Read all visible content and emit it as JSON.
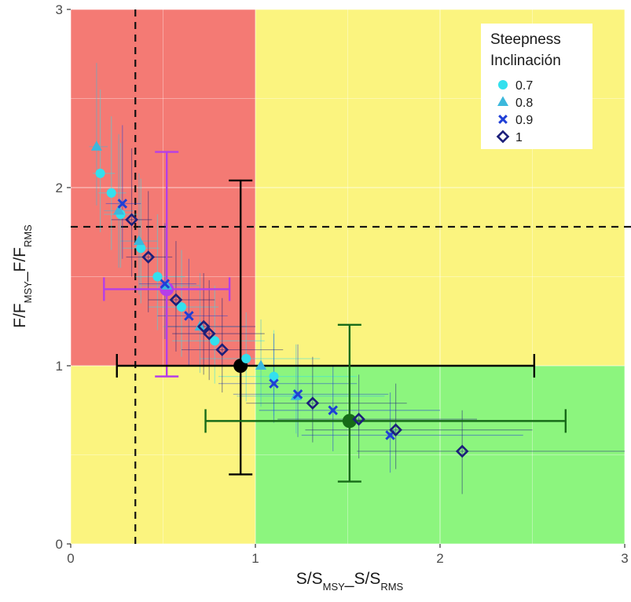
{
  "chart_data": {
    "type": "scatter",
    "xlabel": {
      "parts": [
        "S/S",
        "MSY",
        "_S/S",
        "RMS"
      ]
    },
    "ylabel": {
      "parts": [
        "F/F",
        "MSY",
        "_F/F",
        "RMS"
      ]
    },
    "xlim": [
      0,
      3
    ],
    "ylim": [
      0,
      3
    ],
    "x_ticks": [
      0,
      1,
      2,
      3
    ],
    "y_ticks": [
      0,
      1,
      2,
      3
    ],
    "grid": true,
    "zones": [
      {
        "name": "overfished-overfishing",
        "x": [
          0,
          1
        ],
        "y": [
          1,
          3
        ],
        "color": "#f47a74"
      },
      {
        "name": "top-right",
        "x": [
          1,
          3
        ],
        "y": [
          1,
          3
        ],
        "color": "#fbf47f"
      },
      {
        "name": "bottom-left",
        "x": [
          0,
          1
        ],
        "y": [
          0,
          1
        ],
        "color": "#fbf47f"
      },
      {
        "name": "healthy",
        "x": [
          1,
          3
        ],
        "y": [
          0,
          1
        ],
        "color": "#8cf57e"
      }
    ],
    "reference_lines": {
      "vertical_x": 0.35,
      "horizontal_y": 1.78,
      "style": "dashed"
    },
    "legend": {
      "title_lines": [
        "Steepness",
        "Inclinación"
      ],
      "position": "top-right",
      "entries": [
        {
          "label": "0.7",
          "shape": "circle",
          "color": "#33e0ee"
        },
        {
          "label": "0.8",
          "shape": "triangle",
          "color": "#3cb8dc"
        },
        {
          "label": "0.9",
          "shape": "x",
          "color": "#1f3fd6"
        },
        {
          "label": "1",
          "shape": "diamond",
          "color": "#1c1f7a"
        }
      ]
    },
    "series": [
      {
        "name": "0.7",
        "points": [
          {
            "x": 0.16,
            "y": 2.08,
            "xerr": [
              0.12,
              0.24
            ],
            "yerr": [
              1.75,
              2.55
            ]
          },
          {
            "x": 0.22,
            "y": 1.97,
            "xerr": [
              0.15,
              0.3
            ],
            "yerr": [
              1.65,
              2.4
            ]
          },
          {
            "x": 0.27,
            "y": 1.85,
            "xerr": [
              0.18,
              0.36
            ],
            "yerr": [
              1.55,
              2.25
            ]
          },
          {
            "x": 0.38,
            "y": 1.66,
            "xerr": [
              0.28,
              0.48
            ],
            "yerr": [
              1.35,
              2.05
            ]
          },
          {
            "x": 0.47,
            "y": 1.5,
            "xerr": [
              0.35,
              0.62
            ],
            "yerr": [
              1.2,
              1.85
            ]
          },
          {
            "x": 0.6,
            "y": 1.33,
            "xerr": [
              0.42,
              0.8
            ],
            "yerr": [
              1.05,
              1.65
            ]
          },
          {
            "x": 0.78,
            "y": 1.14,
            "xerr": [
              0.55,
              1.05
            ],
            "yerr": [
              0.9,
              1.45
            ]
          },
          {
            "x": 0.95,
            "y": 1.04,
            "xerr": [
              0.7,
              1.35
            ],
            "yerr": [
              0.8,
              1.3
            ]
          },
          {
            "x": 1.1,
            "y": 0.94,
            "xerr": [
              0.8,
              1.55
            ],
            "yerr": [
              0.72,
              1.2
            ]
          }
        ]
      },
      {
        "name": "0.8",
        "points": [
          {
            "x": 0.14,
            "y": 2.23,
            "xerr": [
              0.1,
              0.2
            ],
            "yerr": [
              1.9,
              2.7
            ]
          },
          {
            "x": 0.26,
            "y": 1.87,
            "xerr": [
              0.18,
              0.34
            ],
            "yerr": [
              1.55,
              2.3
            ]
          },
          {
            "x": 0.37,
            "y": 1.7,
            "xerr": [
              0.27,
              0.47
            ],
            "yerr": [
              1.4,
              2.08
            ]
          },
          {
            "x": 0.52,
            "y": 1.45,
            "xerr": [
              0.38,
              0.7
            ],
            "yerr": [
              1.15,
              1.8
            ]
          },
          {
            "x": 0.7,
            "y": 1.22,
            "xerr": [
              0.5,
              0.95
            ],
            "yerr": [
              0.96,
              1.52
            ]
          },
          {
            "x": 1.03,
            "y": 1.0,
            "xerr": [
              0.75,
              1.45
            ],
            "yerr": [
              0.77,
              1.26
            ]
          },
          {
            "x": 1.22,
            "y": 0.83,
            "xerr": [
              0.9,
              1.7
            ],
            "yerr": [
              0.62,
              1.12
            ]
          }
        ]
      },
      {
        "name": "0.9",
        "points": [
          {
            "x": 0.28,
            "y": 1.91,
            "xerr": [
              0.19,
              0.38
            ],
            "yerr": [
              1.6,
              2.35
            ]
          },
          {
            "x": 0.51,
            "y": 1.46,
            "xerr": [
              0.37,
              0.68
            ],
            "yerr": [
              1.15,
              1.8
            ]
          },
          {
            "x": 0.64,
            "y": 1.28,
            "xerr": [
              0.47,
              0.85
            ],
            "yerr": [
              1.0,
              1.6
            ]
          },
          {
            "x": 1.1,
            "y": 0.9,
            "xerr": [
              0.8,
              1.55
            ],
            "yerr": [
              0.68,
              1.18
            ]
          },
          {
            "x": 1.23,
            "y": 0.84,
            "xerr": [
              0.88,
              1.72
            ],
            "yerr": [
              0.6,
              1.12
            ]
          },
          {
            "x": 1.42,
            "y": 0.75,
            "xerr": [
              1.02,
              2.0
            ],
            "yerr": [
              0.52,
              1.0
            ]
          },
          {
            "x": 1.73,
            "y": 0.61,
            "xerr": [
              1.25,
              2.45
            ],
            "yerr": [
              0.4,
              0.85
            ]
          }
        ]
      },
      {
        "name": "1",
        "points": [
          {
            "x": 0.33,
            "y": 1.82,
            "xerr": [
              0.22,
              0.44
            ],
            "yerr": [
              1.5,
              2.22
            ]
          },
          {
            "x": 0.42,
            "y": 1.61,
            "xerr": [
              0.3,
              0.55
            ],
            "yerr": [
              1.3,
              1.98
            ]
          },
          {
            "x": 0.57,
            "y": 1.37,
            "xerr": [
              0.42,
              0.78
            ],
            "yerr": [
              1.08,
              1.7
            ]
          },
          {
            "x": 0.72,
            "y": 1.22,
            "xerr": [
              0.52,
              1.0
            ],
            "yerr": [
              0.95,
              1.52
            ]
          },
          {
            "x": 0.75,
            "y": 1.18,
            "xerr": [
              0.55,
              1.05
            ],
            "yerr": [
              0.92,
              1.48
            ]
          },
          {
            "x": 0.82,
            "y": 1.09,
            "xerr": [
              0.6,
              1.15
            ],
            "yerr": [
              0.85,
              1.38
            ]
          },
          {
            "x": 1.31,
            "y": 0.79,
            "xerr": [
              0.95,
              1.82
            ],
            "yerr": [
              0.57,
              1.05
            ]
          },
          {
            "x": 1.56,
            "y": 0.7,
            "xerr": [
              1.12,
              2.2
            ],
            "yerr": [
              0.48,
              0.95
            ]
          },
          {
            "x": 1.76,
            "y": 0.64,
            "xerr": [
              1.27,
              2.5
            ],
            "yerr": [
              0.42,
              0.9
            ]
          },
          {
            "x": 2.12,
            "y": 0.52,
            "xerr": [
              1.55,
              3.0
            ],
            "yerr": [
              0.28,
              0.75
            ]
          }
        ]
      }
    ],
    "summary_points": [
      {
        "name": "purple",
        "color": "#b53ee8",
        "x": 0.52,
        "y": 1.43,
        "xerr": [
          0.18,
          0.86
        ],
        "yerr": [
          0.94,
          2.2
        ]
      },
      {
        "name": "black",
        "color": "#000000",
        "x": 0.92,
        "y": 1.0,
        "xerr": [
          0.25,
          2.51
        ],
        "yerr": [
          0.39,
          2.04
        ]
      },
      {
        "name": "green",
        "color": "#176b18",
        "x": 1.51,
        "y": 0.69,
        "xerr": [
          0.73,
          2.68
        ],
        "yerr": [
          0.35,
          1.23
        ]
      }
    ]
  }
}
